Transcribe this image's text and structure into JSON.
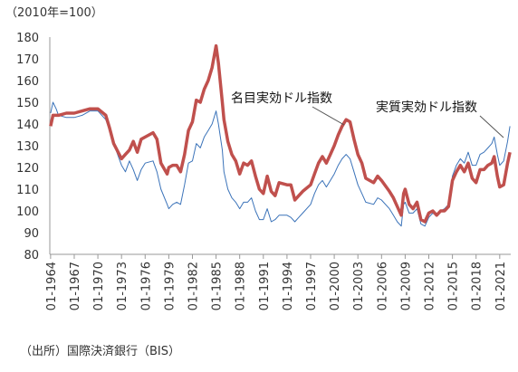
{
  "chart_data": {
    "type": "line",
    "subtitle": "（2010年=100）",
    "source": "（出所）国際決済銀行（BIS）",
    "annotations": [
      {
        "text": "名目実効ドル指数"
      },
      {
        "text": "実質実効ドル指数"
      }
    ],
    "x": [
      1964,
      1964.3,
      1964.7,
      1965,
      1966,
      1967,
      1968,
      1969,
      1970,
      1971,
      1971.5,
      1972,
      1973,
      1973.5,
      1974,
      1974.5,
      1975,
      1975.5,
      1976,
      1977,
      1977.5,
      1978,
      1978.8,
      1979,
      1979.5,
      1980,
      1980.5,
      1981,
      1981.5,
      1982,
      1982.5,
      1983,
      1983.5,
      1984,
      1984.5,
      1985,
      1985.3,
      1985.8,
      1986,
      1986.5,
      1987,
      1987.5,
      1988,
      1988.5,
      1989,
      1989.5,
      1990,
      1990.5,
      1991,
      1991.5,
      1992,
      1992.5,
      1993,
      1994,
      1994.5,
      1995,
      1995.5,
      1996,
      1997,
      1997.5,
      1998,
      1998.5,
      1999,
      1999.5,
      2000,
      2000.5,
      2001,
      2001.5,
      2002,
      2002.5,
      2003,
      2003.5,
      2004,
      2005,
      2005.5,
      2006,
      2007,
      2007.5,
      2008,
      2008.5,
      2008.8,
      2009,
      2009.5,
      2010,
      2010.5,
      2011,
      2011.5,
      2012,
      2012.5,
      2013,
      2013.5,
      2014,
      2014.5,
      2015,
      2015.5,
      2016,
      2016.5,
      2017,
      2017.5,
      2018,
      2018.5,
      2019,
      2019.5,
      2020,
      2020.3,
      2020.7,
      2021,
      2021.5,
      2022,
      2022.3
    ],
    "series": [
      {
        "name": "実質実効ドル指数",
        "color": "#3b73b9",
        "width": 1,
        "values": [
          145,
          150,
          147,
          144,
          143,
          143,
          144,
          146,
          146,
          142,
          137,
          131,
          121,
          118,
          123,
          119,
          114,
          119,
          122,
          123,
          118,
          110,
          103,
          101,
          103,
          104,
          103,
          112,
          122,
          123,
          131,
          129,
          134,
          137,
          140,
          146,
          140,
          128,
          118,
          110,
          106,
          104,
          101,
          104,
          104,
          106,
          100,
          96,
          96,
          101,
          95,
          96,
          98,
          98,
          97,
          95,
          97,
          99,
          103,
          108,
          112,
          114,
          111,
          114,
          117,
          121,
          124,
          126,
          124,
          118,
          112,
          108,
          104,
          103,
          106,
          105,
          101,
          98,
          95,
          93,
          103,
          104,
          99,
          99,
          101,
          94,
          93,
          97,
          99,
          98,
          100,
          101,
          103,
          116,
          121,
          124,
          122,
          127,
          121,
          121,
          126,
          127,
          129,
          131,
          134,
          126,
          121,
          123,
          132,
          139
        ]
      },
      {
        "name": "名目実効ドル指数",
        "color": "#c0504d",
        "width": 3.5,
        "values": [
          139,
          144,
          144,
          144,
          145,
          145,
          146,
          147,
          147,
          144,
          138,
          131,
          124,
          126,
          128,
          132,
          127,
          133,
          134,
          136,
          133,
          122,
          117,
          120,
          121,
          121,
          118,
          126,
          137,
          141,
          151,
          150,
          156,
          160,
          166,
          176,
          168,
          150,
          142,
          132,
          126,
          123,
          117,
          122,
          121,
          123,
          116,
          110,
          108,
          116,
          109,
          107,
          113,
          112,
          112,
          105,
          107,
          109,
          112,
          117,
          122,
          125,
          122,
          126,
          130,
          135,
          139,
          142,
          141,
          133,
          126,
          122,
          115,
          113,
          116,
          114,
          109,
          106,
          102,
          98,
          108,
          110,
          103,
          101,
          104,
          96,
          95,
          99,
          100,
          98,
          100,
          100,
          102,
          114,
          118,
          121,
          118,
          122,
          115,
          113,
          119,
          119,
          121,
          122,
          125,
          116,
          111,
          112,
          122,
          127
        ]
      }
    ],
    "xlim": [
      1963.9,
      2022.4
    ],
    "ylim": [
      80,
      180
    ],
    "yticks": [
      80,
      90,
      100,
      110,
      120,
      130,
      140,
      150,
      160,
      170,
      180
    ],
    "xticks": [
      {
        "value": 1964,
        "label": "01-1964"
      },
      {
        "value": 1967,
        "label": "01-1967"
      },
      {
        "value": 1970,
        "label": "01-1970"
      },
      {
        "value": 1973,
        "label": "01-1973"
      },
      {
        "value": 1976,
        "label": "01-1976"
      },
      {
        "value": 1979,
        "label": "01-1979"
      },
      {
        "value": 1982,
        "label": "01-1982"
      },
      {
        "value": 1985,
        "label": "01-1985"
      },
      {
        "value": 1988,
        "label": "01-1988"
      },
      {
        "value": 1991,
        "label": "01-1991"
      },
      {
        "value": 1994,
        "label": "01-1994"
      },
      {
        "value": 1997,
        "label": "01-1997"
      },
      {
        "value": 2000,
        "label": "01-2000"
      },
      {
        "value": 2003,
        "label": "01-2003"
      },
      {
        "value": 2006,
        "label": "01-2006"
      },
      {
        "value": 2009,
        "label": "01-2009"
      },
      {
        "value": 2012,
        "label": "01-2012"
      },
      {
        "value": 2015,
        "label": "01-2015"
      },
      {
        "value": 2018,
        "label": "01-2018"
      },
      {
        "value": 2021,
        "label": "01-2021"
      }
    ],
    "grid": false
  }
}
